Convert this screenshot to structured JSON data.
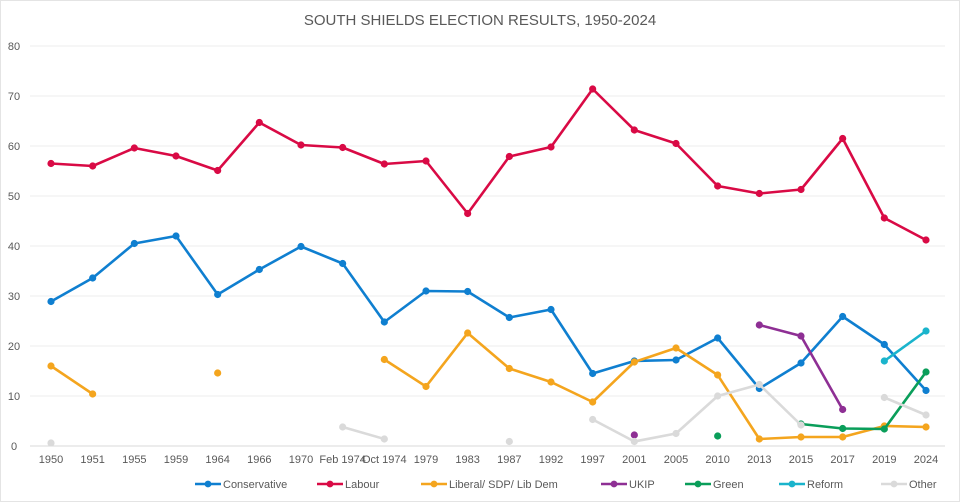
{
  "chart_data": {
    "type": "line",
    "title": "SOUTH SHIELDS ELECTION RESULTS, 1950-2024",
    "xlabel": "",
    "ylabel": "",
    "ylim": [
      0,
      80
    ],
    "yticks": [
      0,
      10,
      20,
      30,
      40,
      50,
      60,
      70,
      80
    ],
    "grid": true,
    "legend": "bottom",
    "categories": [
      "1950",
      "1951",
      "1955",
      "1959",
      "1964",
      "1966",
      "1970",
      "Feb 1974",
      "Oct 1974",
      "1979",
      "1983",
      "1987",
      "1992",
      "1997",
      "2001",
      "2005",
      "2010",
      "2013",
      "2015",
      "2017",
      "2019",
      "2024"
    ],
    "series": [
      {
        "name": "Conservative",
        "color": "#0f7fd0",
        "values": [
          28.9,
          33.6,
          40.5,
          42.0,
          30.3,
          35.3,
          39.9,
          36.5,
          24.8,
          31.0,
          30.9,
          25.7,
          27.3,
          14.5,
          17.0,
          17.2,
          21.6,
          11.5,
          16.6,
          25.9,
          20.3,
          11.1
        ]
      },
      {
        "name": "Labour",
        "color": "#d90a45",
        "values": [
          56.5,
          56.0,
          59.6,
          58.0,
          55.1,
          64.7,
          60.2,
          59.7,
          56.4,
          57.0,
          46.5,
          57.9,
          59.8,
          71.4,
          63.2,
          60.5,
          52.0,
          50.5,
          51.3,
          61.5,
          45.6,
          41.2
        ]
      },
      {
        "name": "Liberal/ SDP/ Lib  Dem",
        "color": "#f4a51e",
        "values": [
          16.0,
          10.4,
          null,
          null,
          14.6,
          null,
          null,
          null,
          17.3,
          11.9,
          22.6,
          15.5,
          12.8,
          8.8,
          16.8,
          19.6,
          14.2,
          1.4,
          1.8,
          1.8,
          4.0,
          3.8
        ]
      },
      {
        "name": "UKIP",
        "color": "#8e2f94",
        "values": [
          null,
          null,
          null,
          null,
          null,
          null,
          null,
          null,
          null,
          null,
          null,
          null,
          null,
          null,
          2.2,
          null,
          null,
          24.2,
          22.0,
          7.3,
          null,
          null
        ]
      },
      {
        "name": "Green",
        "color": "#0a9e5a",
        "values": [
          null,
          null,
          null,
          null,
          null,
          null,
          null,
          null,
          null,
          null,
          null,
          null,
          null,
          null,
          null,
          null,
          2.0,
          null,
          4.4,
          3.5,
          3.4,
          14.8
        ]
      },
      {
        "name": "Reform",
        "color": "#1ab4cc",
        "values": [
          null,
          null,
          null,
          null,
          null,
          null,
          null,
          null,
          null,
          null,
          null,
          null,
          null,
          null,
          null,
          null,
          null,
          null,
          null,
          null,
          17.0,
          23.0
        ]
      },
      {
        "name": "Other",
        "color": "#dadada",
        "values": [
          0.6,
          null,
          null,
          null,
          null,
          null,
          null,
          3.8,
          1.4,
          null,
          null,
          0.9,
          null,
          5.3,
          0.9,
          2.5,
          10.0,
          12.3,
          4.2,
          null,
          9.7,
          6.2
        ]
      }
    ]
  }
}
